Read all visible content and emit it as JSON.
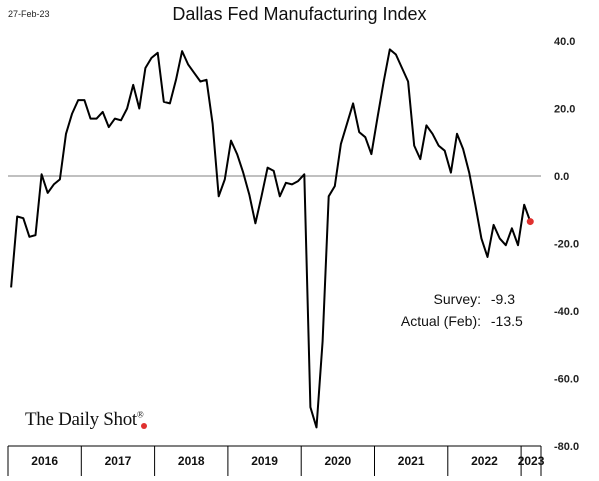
{
  "date_stamp": "27-Feb-23",
  "brand": {
    "name": "The Daily Shot",
    "mark": "®"
  },
  "annotations": {
    "survey_label": "Survey:",
    "survey_value": "-9.3",
    "actual_label": "Actual (Feb):",
    "actual_value": "-13.5"
  },
  "colors": {
    "line": "#000000",
    "actual_point": "#e0312f",
    "zero_line": "#808080"
  },
  "chart_data": {
    "type": "line",
    "title": "Dallas Fed Manufacturing Index",
    "xlabel": "",
    "ylabel": "",
    "ylim": [
      -80,
      40
    ],
    "y_ticks": [
      40,
      20,
      0,
      -20,
      -40,
      -60,
      -80
    ],
    "y_tick_labels": [
      "40.0",
      "20.0",
      "0.0",
      "-20.0",
      "-40.0",
      "-60.0",
      "-80.0"
    ],
    "year_labels": [
      "2016",
      "2017",
      "2018",
      "2019",
      "2020",
      "2021",
      "2022",
      "2023"
    ],
    "x_start": "2016-01",
    "x_end": "2023-02",
    "series": [
      {
        "values": [
          -33,
          -12,
          -12.5,
          -18,
          -17.5,
          0.5,
          -5,
          -2.5,
          -1,
          12.5,
          18.5,
          22.5,
          22.5,
          17,
          17,
          19,
          14.5,
          17,
          16.5,
          20,
          27,
          20,
          32,
          35,
          36.5,
          22,
          21.5,
          28.5,
          37,
          33,
          30.5,
          28,
          28.5,
          15.5,
          -6,
          -1,
          10.5,
          6.5,
          1,
          -5.5,
          -14,
          -6,
          2.5,
          1.5,
          -6,
          -2,
          -2.5,
          -1.5,
          0.5,
          -68.5,
          -74.5,
          -49,
          -6,
          -3,
          9.5,
          15.5,
          21.5,
          13,
          11.5,
          6.5,
          17.5,
          28,
          37.5,
          36,
          32,
          28,
          9,
          5,
          15,
          12.5,
          9,
          7.5,
          1,
          12.5,
          8,
          1,
          -8.5,
          -18.5,
          -24,
          -14.5,
          -18.5,
          -20.5,
          -15.5,
          -20.5,
          -8.5,
          -13.5
        ]
      }
    ],
    "actual_point": {
      "x": "2023-02",
      "y": -13.5
    }
  }
}
